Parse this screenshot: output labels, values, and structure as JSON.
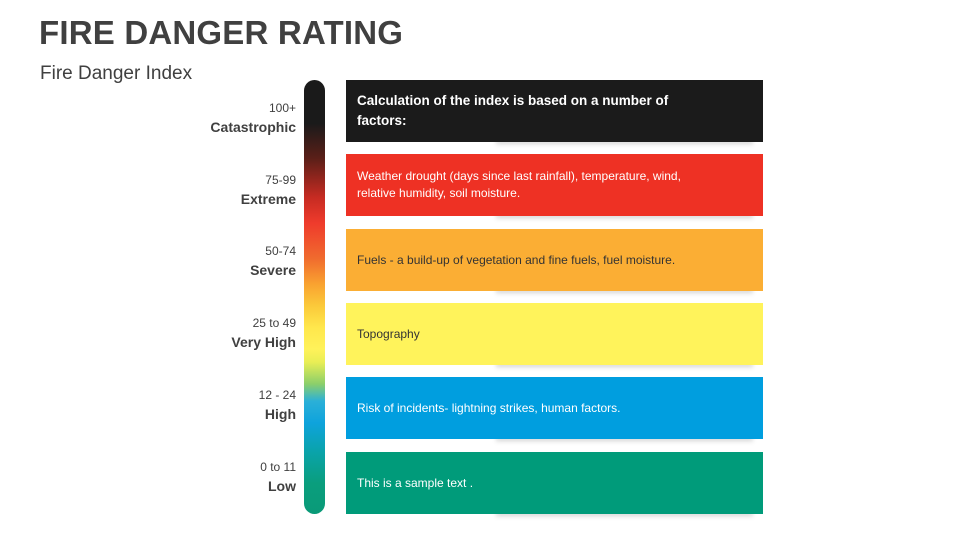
{
  "title": "FIRE DANGER RATING",
  "subtitle": "Fire Danger Index",
  "levels": [
    {
      "range": "100+",
      "name": "Catastrophic"
    },
    {
      "range": "75-99",
      "name": "Extreme"
    },
    {
      "range": "50-74",
      "name": "Severe"
    },
    {
      "range": "25 to 49",
      "name": "Very High"
    },
    {
      "range": "12 - 24",
      "name": "High"
    },
    {
      "range": "0 to 11",
      "name": "Low"
    }
  ],
  "cards": [
    {
      "text": "Calculation of the index is based on a number of factors:",
      "color": "#1b1b1b"
    },
    {
      "text": "Weather drought (days since last rainfall), temperature, wind, relative humidity, soil moisture.",
      "color": "#ee3124"
    },
    {
      "text": "Fuels - a build-up of vegetation and fine fuels, fuel moisture.",
      "color": "#fbae34"
    },
    {
      "text": "Topography",
      "color": "#fff35b"
    },
    {
      "text": "Risk of incidents- lightning strikes, human factors.",
      "color": "#009edf"
    },
    {
      "text": "This is a sample text .",
      "color": "#009b7a"
    }
  ]
}
